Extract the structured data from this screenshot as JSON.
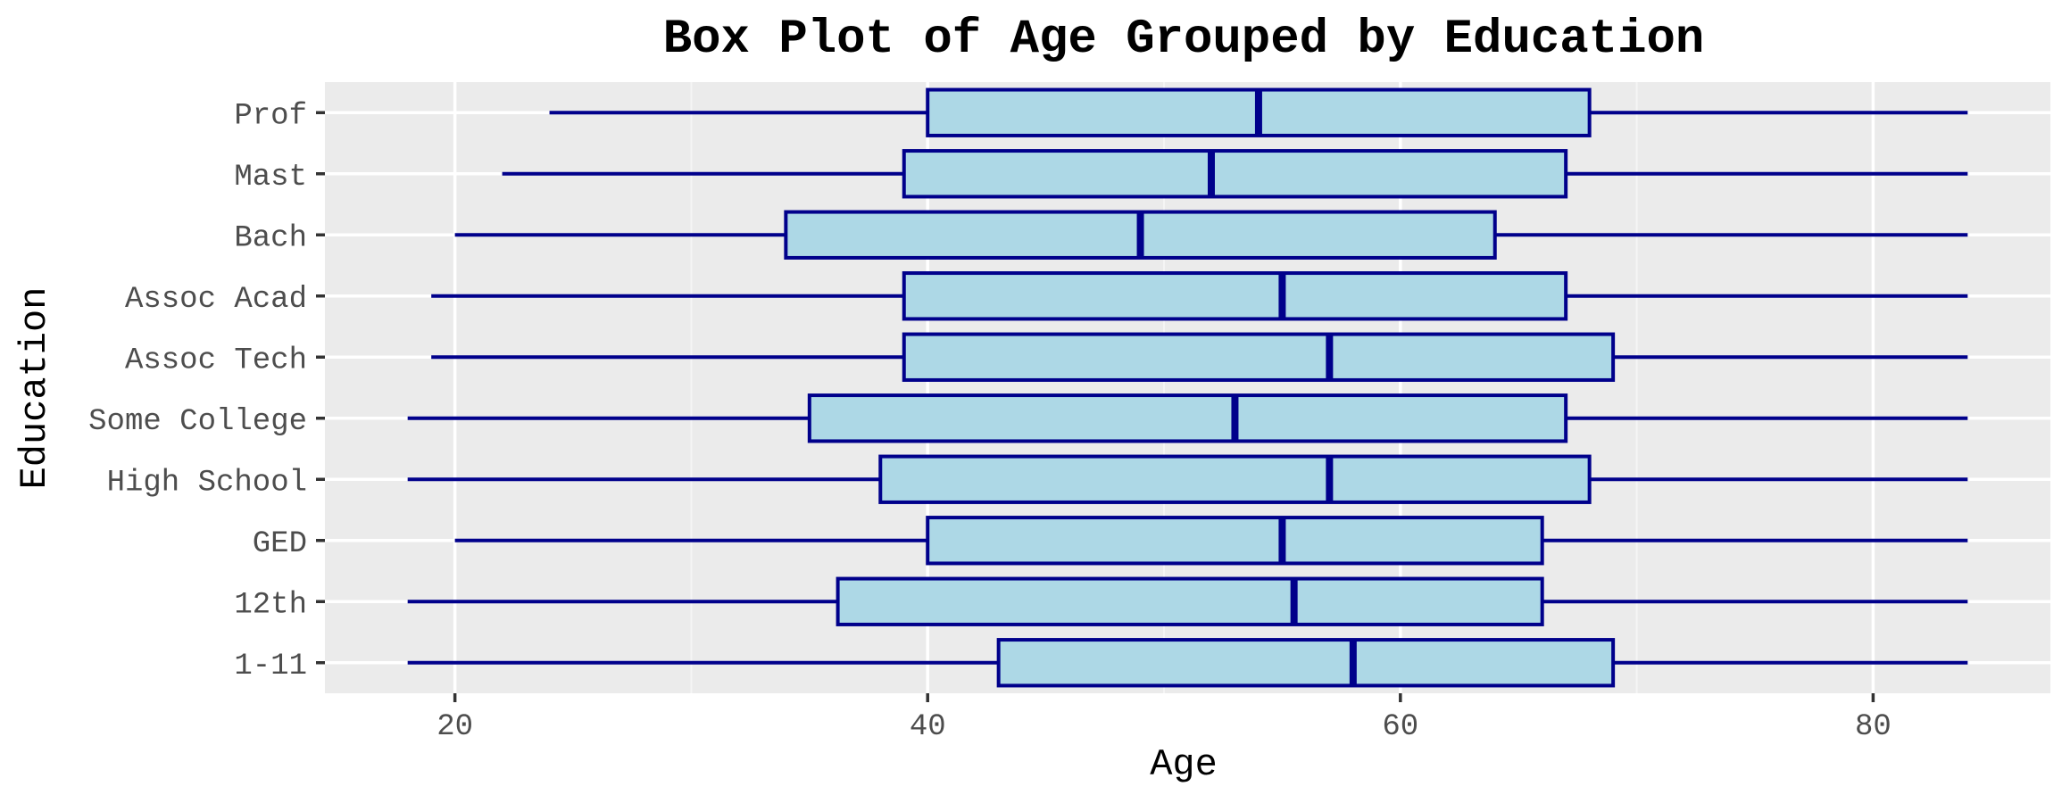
{
  "chart_data": {
    "type": "boxplot",
    "orientation": "horizontal",
    "title": "Box Plot of Age Grouped by Education",
    "xlabel": "Age",
    "ylabel": "Education",
    "xlim": [
      14.5,
      87.5
    ],
    "x_ticks": [
      20,
      40,
      60,
      80
    ],
    "grid": true,
    "categories": [
      "1-11",
      "12th",
      "GED",
      "High School",
      "Some College",
      "Assoc Tech",
      "Assoc Acad",
      "Bach",
      "Mast",
      "Prof"
    ],
    "boxes": [
      {
        "category": "1-11",
        "min": 18,
        "q1": 43,
        "median": 58,
        "q3": 69,
        "max": 84
      },
      {
        "category": "12th",
        "min": 18,
        "q1": 36.2,
        "median": 55.5,
        "q3": 66,
        "max": 84
      },
      {
        "category": "GED",
        "min": 20,
        "q1": 40,
        "median": 55,
        "q3": 66,
        "max": 84
      },
      {
        "category": "High School",
        "min": 18,
        "q1": 38,
        "median": 57,
        "q3": 68,
        "max": 84
      },
      {
        "category": "Some College",
        "min": 18,
        "q1": 35,
        "median": 53,
        "q3": 67,
        "max": 84
      },
      {
        "category": "Assoc Tech",
        "min": 19,
        "q1": 39,
        "median": 57,
        "q3": 69,
        "max": 84
      },
      {
        "category": "Assoc Acad",
        "min": 19,
        "q1": 39,
        "median": 55,
        "q3": 67,
        "max": 84
      },
      {
        "category": "Bach",
        "min": 20,
        "q1": 34,
        "median": 49,
        "q3": 64,
        "max": 84
      },
      {
        "category": "Mast",
        "min": 22,
        "q1": 39,
        "median": 52,
        "q3": 67,
        "max": 84
      },
      {
        "category": "Prof",
        "min": 24,
        "q1": 40,
        "median": 54,
        "q3": 68,
        "max": 84
      }
    ],
    "colors": {
      "box_fill": "#add8e6",
      "box_stroke": "#00008b",
      "panel_background": "#ebebeb",
      "grid_major": "#ffffff",
      "grid_minor": "#f5f5f5"
    }
  }
}
